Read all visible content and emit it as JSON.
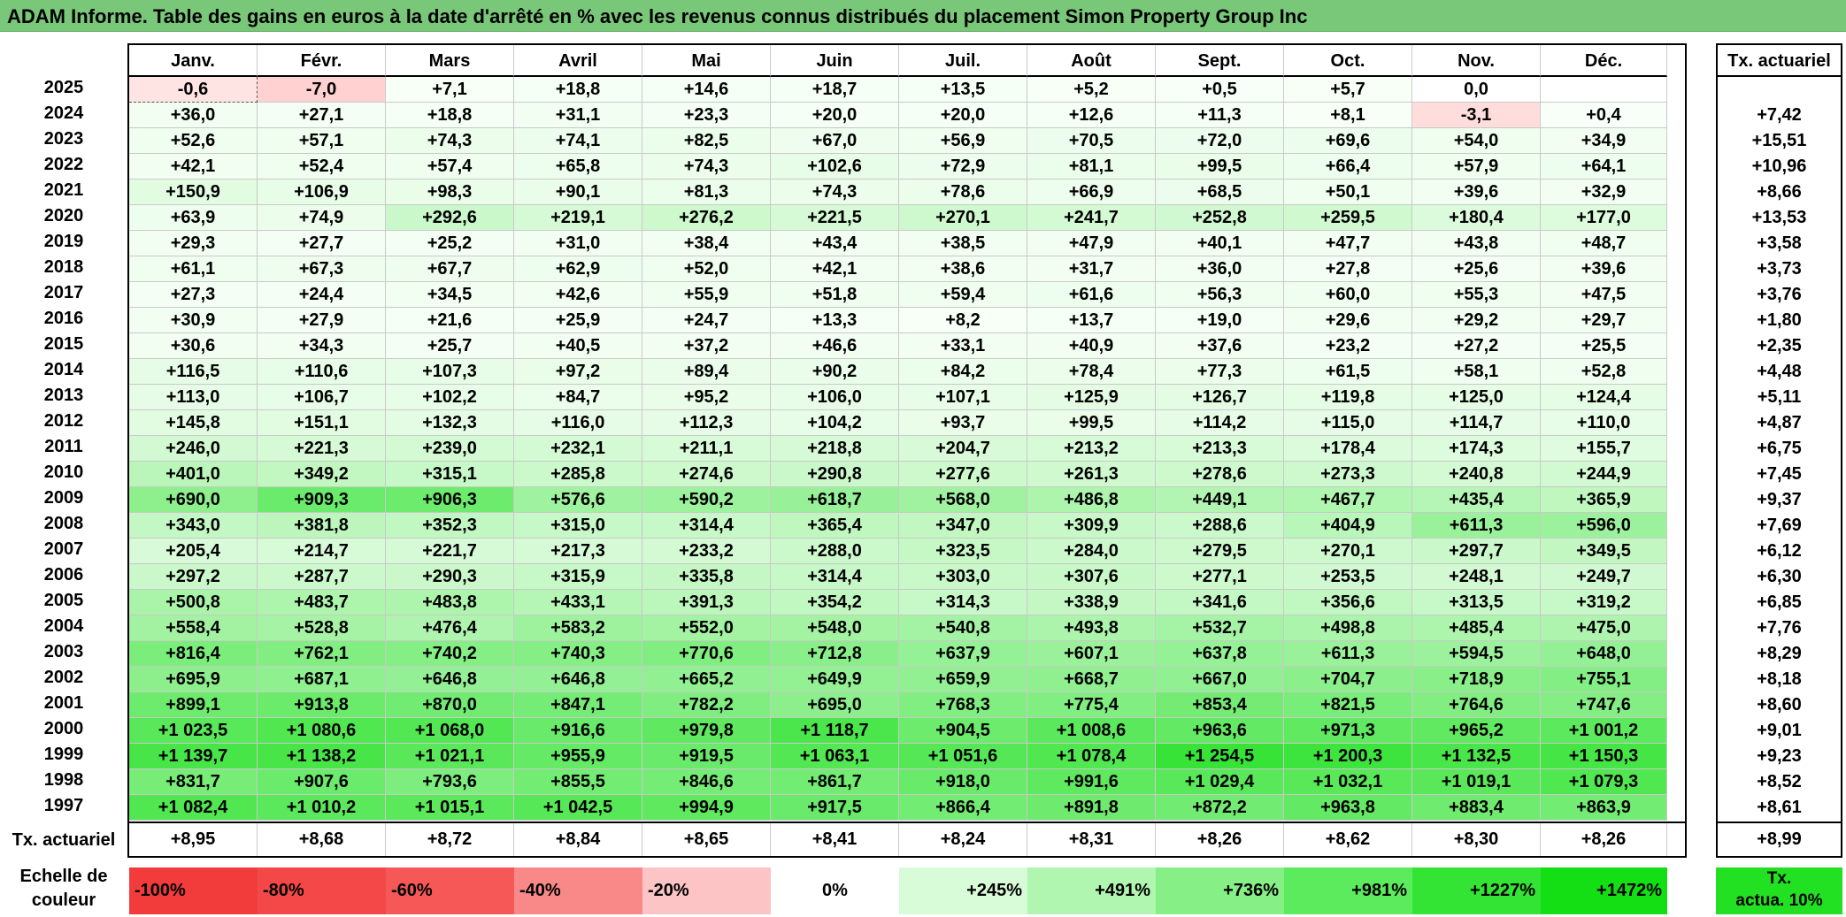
{
  "title": "ADAM Informe. Table des gains en euros à la date d'arrêté en % avec les revenus connus distribués du placement Simon Property Group Inc",
  "months": [
    "Janv.",
    "Févr.",
    "Mars",
    "Avril",
    "Mai",
    "Juin",
    "Juil.",
    "Août",
    "Sept.",
    "Oct.",
    "Nov.",
    "Déc."
  ],
  "ta_header": "Tx. actuariel",
  "rows": [
    {
      "year": "2025",
      "values": [
        "-0,6",
        "-7,0",
        "+7,1",
        "+18,8",
        "+14,6",
        "+18,7",
        "+13,5",
        "+5,2",
        "+0,5",
        "+5,7",
        "0,0",
        ""
      ],
      "ta": ""
    },
    {
      "year": "2024",
      "values": [
        "+36,0",
        "+27,1",
        "+18,8",
        "+31,1",
        "+23,3",
        "+20,0",
        "+20,0",
        "+12,6",
        "+11,3",
        "+8,1",
        "-3,1",
        "+0,4"
      ],
      "ta": "+7,42"
    },
    {
      "year": "2023",
      "values": [
        "+52,6",
        "+57,1",
        "+74,3",
        "+74,1",
        "+82,5",
        "+67,0",
        "+56,9",
        "+70,5",
        "+72,0",
        "+69,6",
        "+54,0",
        "+34,9"
      ],
      "ta": "+15,51"
    },
    {
      "year": "2022",
      "values": [
        "+42,1",
        "+52,4",
        "+57,4",
        "+65,8",
        "+74,3",
        "+102,6",
        "+72,9",
        "+81,1",
        "+99,5",
        "+66,4",
        "+57,9",
        "+64,1"
      ],
      "ta": "+10,96"
    },
    {
      "year": "2021",
      "values": [
        "+150,9",
        "+106,9",
        "+98,3",
        "+90,1",
        "+81,3",
        "+74,3",
        "+78,6",
        "+66,9",
        "+68,5",
        "+50,1",
        "+39,6",
        "+32,9"
      ],
      "ta": "+8,66"
    },
    {
      "year": "2020",
      "values": [
        "+63,9",
        "+74,9",
        "+292,6",
        "+219,1",
        "+276,2",
        "+221,5",
        "+270,1",
        "+241,7",
        "+252,8",
        "+259,5",
        "+180,4",
        "+177,0"
      ],
      "ta": "+13,53"
    },
    {
      "year": "2019",
      "values": [
        "+29,3",
        "+27,7",
        "+25,2",
        "+31,0",
        "+38,4",
        "+43,4",
        "+38,5",
        "+47,9",
        "+40,1",
        "+47,7",
        "+43,8",
        "+48,7"
      ],
      "ta": "+3,58"
    },
    {
      "year": "2018",
      "values": [
        "+61,1",
        "+67,3",
        "+67,7",
        "+62,9",
        "+52,0",
        "+42,1",
        "+38,6",
        "+31,7",
        "+36,0",
        "+27,8",
        "+25,6",
        "+39,6"
      ],
      "ta": "+3,73"
    },
    {
      "year": "2017",
      "values": [
        "+27,3",
        "+24,4",
        "+34,5",
        "+42,6",
        "+55,9",
        "+51,8",
        "+59,4",
        "+61,6",
        "+56,3",
        "+60,0",
        "+55,3",
        "+47,5"
      ],
      "ta": "+3,76"
    },
    {
      "year": "2016",
      "values": [
        "+30,9",
        "+27,9",
        "+21,6",
        "+25,9",
        "+24,7",
        "+13,3",
        "+8,2",
        "+13,7",
        "+19,0",
        "+29,6",
        "+29,2",
        "+29,7"
      ],
      "ta": "+1,80"
    },
    {
      "year": "2015",
      "values": [
        "+30,6",
        "+34,3",
        "+25,7",
        "+40,5",
        "+37,2",
        "+46,6",
        "+33,1",
        "+40,9",
        "+37,6",
        "+23,2",
        "+27,2",
        "+25,5"
      ],
      "ta": "+2,35"
    },
    {
      "year": "2014",
      "values": [
        "+116,5",
        "+110,6",
        "+107,3",
        "+97,2",
        "+89,4",
        "+90,2",
        "+84,2",
        "+78,4",
        "+77,3",
        "+61,5",
        "+58,1",
        "+52,8"
      ],
      "ta": "+4,48"
    },
    {
      "year": "2013",
      "values": [
        "+113,0",
        "+106,7",
        "+102,2",
        "+84,7",
        "+95,2",
        "+106,0",
        "+107,1",
        "+125,9",
        "+126,7",
        "+119,8",
        "+125,0",
        "+124,4"
      ],
      "ta": "+5,11"
    },
    {
      "year": "2012",
      "values": [
        "+145,8",
        "+151,1",
        "+132,3",
        "+116,0",
        "+112,3",
        "+104,2",
        "+93,7",
        "+99,5",
        "+114,2",
        "+115,0",
        "+114,7",
        "+110,0"
      ],
      "ta": "+4,87"
    },
    {
      "year": "2011",
      "values": [
        "+246,0",
        "+221,3",
        "+239,0",
        "+232,1",
        "+211,1",
        "+218,8",
        "+204,7",
        "+213,2",
        "+213,3",
        "+178,4",
        "+174,3",
        "+155,7"
      ],
      "ta": "+6,75"
    },
    {
      "year": "2010",
      "values": [
        "+401,0",
        "+349,2",
        "+315,1",
        "+285,8",
        "+274,6",
        "+290,8",
        "+277,6",
        "+261,3",
        "+278,6",
        "+273,3",
        "+240,8",
        "+244,9"
      ],
      "ta": "+7,45"
    },
    {
      "year": "2009",
      "values": [
        "+690,0",
        "+909,3",
        "+906,3",
        "+576,6",
        "+590,2",
        "+618,7",
        "+568,0",
        "+486,8",
        "+449,1",
        "+467,7",
        "+435,4",
        "+365,9"
      ],
      "ta": "+9,37"
    },
    {
      "year": "2008",
      "values": [
        "+343,0",
        "+381,8",
        "+352,3",
        "+315,0",
        "+314,4",
        "+365,4",
        "+347,0",
        "+309,9",
        "+288,6",
        "+404,9",
        "+611,3",
        "+596,0"
      ],
      "ta": "+7,69"
    },
    {
      "year": "2007",
      "values": [
        "+205,4",
        "+214,7",
        "+221,7",
        "+217,3",
        "+233,2",
        "+288,0",
        "+323,5",
        "+284,0",
        "+279,5",
        "+270,1",
        "+297,7",
        "+349,5"
      ],
      "ta": "+6,12"
    },
    {
      "year": "2006",
      "values": [
        "+297,2",
        "+287,7",
        "+290,3",
        "+315,9",
        "+335,8",
        "+314,4",
        "+303,0",
        "+307,6",
        "+277,1",
        "+253,5",
        "+248,1",
        "+249,7"
      ],
      "ta": "+6,30"
    },
    {
      "year": "2005",
      "values": [
        "+500,8",
        "+483,7",
        "+483,8",
        "+433,1",
        "+391,3",
        "+354,2",
        "+314,3",
        "+338,9",
        "+341,6",
        "+356,6",
        "+313,5",
        "+319,2"
      ],
      "ta": "+6,85"
    },
    {
      "year": "2004",
      "values": [
        "+558,4",
        "+528,8",
        "+476,4",
        "+583,2",
        "+552,0",
        "+548,0",
        "+540,8",
        "+493,8",
        "+532,7",
        "+498,8",
        "+485,4",
        "+475,0"
      ],
      "ta": "+7,76"
    },
    {
      "year": "2003",
      "values": [
        "+816,4",
        "+762,1",
        "+740,2",
        "+740,3",
        "+770,6",
        "+712,8",
        "+637,9",
        "+607,1",
        "+637,8",
        "+611,3",
        "+594,5",
        "+648,0"
      ],
      "ta": "+8,29"
    },
    {
      "year": "2002",
      "values": [
        "+695,9",
        "+687,1",
        "+646,8",
        "+646,8",
        "+665,2",
        "+649,9",
        "+659,9",
        "+668,7",
        "+667,0",
        "+704,7",
        "+718,9",
        "+755,1"
      ],
      "ta": "+8,18"
    },
    {
      "year": "2001",
      "values": [
        "+899,1",
        "+913,8",
        "+870,0",
        "+847,1",
        "+782,2",
        "+695,0",
        "+768,3",
        "+775,4",
        "+853,4",
        "+821,5",
        "+764,6",
        "+747,6"
      ],
      "ta": "+8,60"
    },
    {
      "year": "2000",
      "values": [
        "+1 023,5",
        "+1 080,6",
        "+1 068,0",
        "+916,6",
        "+979,8",
        "+1 118,7",
        "+904,5",
        "+1 008,6",
        "+963,6",
        "+971,3",
        "+965,2",
        "+1 001,2"
      ],
      "ta": "+9,01"
    },
    {
      "year": "1999",
      "values": [
        "+1 139,7",
        "+1 138,2",
        "+1 021,1",
        "+955,9",
        "+919,5",
        "+1 063,1",
        "+1 051,6",
        "+1 078,4",
        "+1 254,5",
        "+1 200,3",
        "+1 132,5",
        "+1 150,3"
      ],
      "ta": "+9,23"
    },
    {
      "year": "1998",
      "values": [
        "+831,7",
        "+907,6",
        "+793,6",
        "+855,5",
        "+846,6",
        "+861,7",
        "+918,0",
        "+991,6",
        "+1 029,4",
        "+1 032,1",
        "+1 019,1",
        "+1 079,3"
      ],
      "ta": "+8,52"
    },
    {
      "year": "1997",
      "values": [
        "+1 082,4",
        "+1 010,2",
        "+1 015,1",
        "+1 042,5",
        "+994,9",
        "+917,5",
        "+866,4",
        "+891,8",
        "+872,2",
        "+963,8",
        "+883,4",
        "+863,9"
      ],
      "ta": "+8,61"
    }
  ],
  "bottom": {
    "label": "Tx. actuariel",
    "values": [
      "+8,95",
      "+8,68",
      "+8,72",
      "+8,84",
      "+8,65",
      "+8,41",
      "+8,24",
      "+8,31",
      "+8,26",
      "+8,62",
      "+8,30",
      "+8,26"
    ],
    "ta": "+8,99"
  },
  "scale": {
    "label_line1": "Echelle de",
    "label_line2": "couleur",
    "steps": [
      {
        "label": "-100%",
        "color": "#f23c3c",
        "align": "left"
      },
      {
        "label": "-80%",
        "color": "#f44848",
        "align": "left"
      },
      {
        "label": "-60%",
        "color": "#f65858",
        "align": "left"
      },
      {
        "label": "-40%",
        "color": "#f98888",
        "align": "left"
      },
      {
        "label": "-20%",
        "color": "#fcc4c4",
        "align": "left"
      },
      {
        "label": "0%",
        "color": "#ffffff",
        "align": "center"
      },
      {
        "label": "+245%",
        "color": "#d8fbd8",
        "align": "right"
      },
      {
        "label": "+491%",
        "color": "#b0f6b0",
        "align": "right"
      },
      {
        "label": "+736%",
        "color": "#86f086",
        "align": "right"
      },
      {
        "label": "+981%",
        "color": "#5ceb5c",
        "align": "right"
      },
      {
        "label": "+1227%",
        "color": "#34e434",
        "align": "right"
      },
      {
        "label": "+1472%",
        "color": "#14de14",
        "align": "right"
      }
    ],
    "ta_line1": "Tx.",
    "ta_line2": "actua. 10%",
    "ta_color": "#22e022"
  },
  "colors": {
    "title_bg": "#79c779",
    "negative_light": "#fde0e0",
    "max_green": "#14de14"
  }
}
